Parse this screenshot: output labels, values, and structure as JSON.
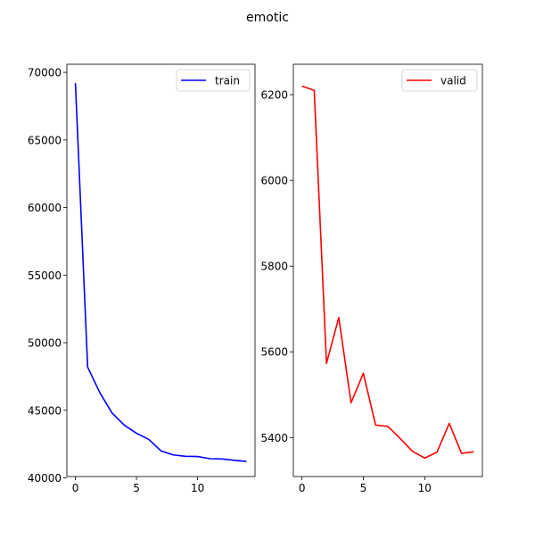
{
  "chart_data": {
    "type": "line",
    "title": "emotic",
    "subplots": [
      {
        "type": "line",
        "x": [
          0,
          1,
          2,
          3,
          4,
          5,
          6,
          7,
          8,
          9,
          10,
          11,
          12,
          13,
          14
        ],
        "series": [
          {
            "name": "train",
            "color": "#0000ff",
            "values": [
              69200,
              48200,
              46300,
              44800,
              43900,
              43300,
              42850,
              42000,
              41700,
              41600,
              41580,
              41420,
              41400,
              41300,
              41220
            ]
          }
        ],
        "xticks": [
          0,
          5,
          10
        ],
        "xtick_labels": [
          "0",
          "5",
          "10"
        ],
        "yticks": [
          40000,
          45000,
          50000,
          55000,
          60000,
          65000,
          70000
        ],
        "ytick_labels": [
          "40000",
          "45000",
          "50000",
          "55000",
          "60000",
          "65000",
          "70000"
        ],
        "xlim": [
          -0.7,
          14.7
        ],
        "ylim": [
          40100,
          70600
        ],
        "legend": "top-right",
        "grid": false
      },
      {
        "type": "line",
        "x": [
          0,
          1,
          2,
          3,
          4,
          5,
          6,
          7,
          8,
          9,
          10,
          11,
          12,
          13,
          14
        ],
        "series": [
          {
            "name": "valid",
            "color": "#ff0000",
            "values": [
              6220,
              6210,
              5573,
              5680,
              5481,
              5550,
              5429,
              5426,
              5398,
              5368,
              5352,
              5366,
              5433,
              5363,
              5367
            ]
          }
        ],
        "xticks": [
          0,
          5,
          10
        ],
        "xtick_labels": [
          "0",
          "5",
          "10"
        ],
        "yticks": [
          5400,
          5600,
          5800,
          6000,
          6200
        ],
        "ytick_labels": [
          "5400",
          "5600",
          "5800",
          "6000",
          "6200"
        ],
        "xlim": [
          -0.7,
          14.7
        ],
        "ylim": [
          5309,
          6271
        ],
        "legend": "top-right",
        "grid": false
      }
    ]
  }
}
